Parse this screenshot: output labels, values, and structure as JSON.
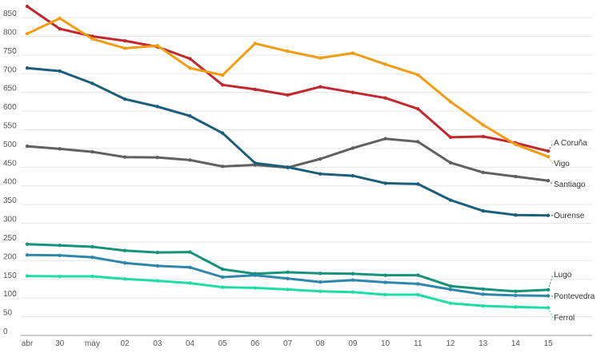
{
  "chart_data": {
    "type": "line",
    "title": "",
    "xlabel": "",
    "ylabel": "",
    "ylim": [
      0,
      880
    ],
    "yticks": [
      0,
      50,
      100,
      150,
      200,
      250,
      300,
      350,
      400,
      450,
      500,
      550,
      600,
      650,
      700,
      750,
      800,
      850
    ],
    "grid": true,
    "legend": "direct-labels-right",
    "categories": [
      "abr",
      "30",
      "may",
      "02",
      "03",
      "04",
      "05",
      "06",
      "07",
      "08",
      "09",
      "10",
      "11",
      "12",
      "13",
      "14",
      "15"
    ],
    "series": [
      {
        "name": "A Coruña",
        "color": "#c1272d",
        "values": [
          880,
          820,
          800,
          788,
          772,
          740,
          670,
          658,
          643,
          665,
          650,
          635,
          606,
          530,
          532,
          515,
          493
        ]
      },
      {
        "name": "Vigo",
        "color": "#f39c12",
        "values": [
          807,
          848,
          793,
          768,
          775,
          715,
          696,
          781,
          760,
          742,
          755,
          725,
          697,
          625,
          563,
          511,
          478
        ]
      },
      {
        "name": "Santiago",
        "color": "#606060",
        "values": [
          506,
          499,
          491,
          477,
          476,
          469,
          452,
          456,
          449,
          472,
          501,
          526,
          518,
          462,
          436,
          425,
          414
        ]
      },
      {
        "name": "Ourense",
        "color": "#1b5e7b",
        "values": [
          715,
          707,
          674,
          632,
          612,
          587,
          541,
          461,
          450,
          432,
          427,
          407,
          405,
          362,
          333,
          322,
          321
        ]
      },
      {
        "name": "Lugo",
        "color": "#16917a",
        "values": [
          244,
          241,
          237,
          227,
          222,
          223,
          177,
          165,
          169,
          166,
          165,
          161,
          161,
          132,
          124,
          118,
          122
        ]
      },
      {
        "name": "Pontevedra",
        "color": "#2e86ab",
        "values": [
          215,
          214,
          209,
          194,
          186,
          182,
          156,
          161,
          152,
          143,
          148,
          142,
          138,
          123,
          110,
          107,
          106
        ]
      },
      {
        "name": "Ferrol",
        "color": "#1fdca3",
        "values": [
          159,
          158,
          158,
          151,
          146,
          140,
          129,
          127,
          123,
          118,
          116,
          109,
          109,
          86,
          79,
          76,
          74
        ]
      }
    ]
  }
}
